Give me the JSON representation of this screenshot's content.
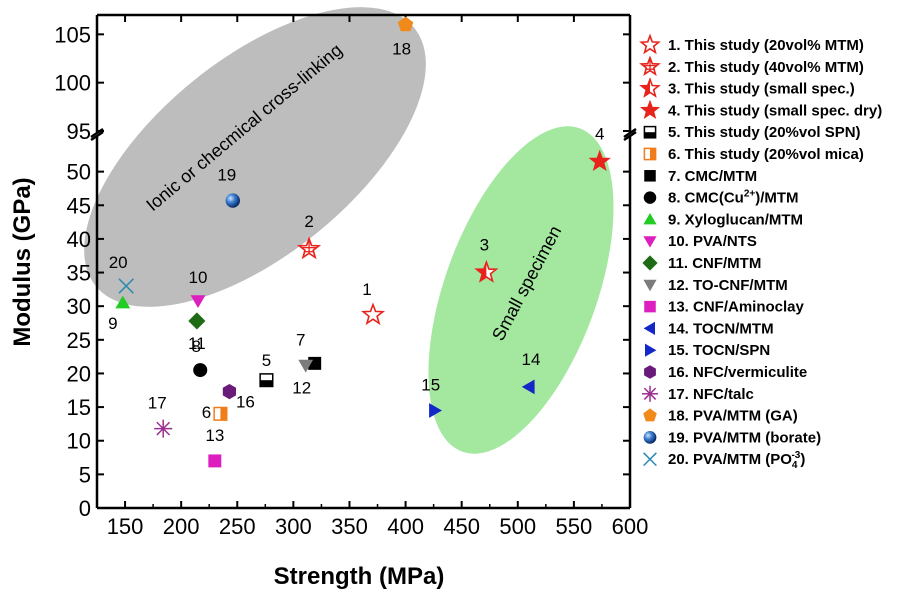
{
  "chart_data": {
    "type": "scatter",
    "xlabel": "Strength (MPa)",
    "ylabel": "Modulus (GPa)",
    "xlim": [
      125,
      600
    ],
    "ylim_lower": [
      0,
      55
    ],
    "ylim_upper": [
      95,
      107
    ],
    "x_ticks": [
      150,
      200,
      250,
      300,
      350,
      400,
      450,
      500,
      550,
      600
    ],
    "y_ticks_lower": [
      0,
      5,
      10,
      15,
      20,
      25,
      30,
      35,
      40,
      45,
      50
    ],
    "y_ticks_upper": [
      95,
      100,
      105
    ],
    "axis_break": "y between 55 and 95",
    "grid": false,
    "legend_position": "right",
    "regions": [
      {
        "label": "Ionic or checmical cross-linking",
        "color": "#bdbdbd"
      },
      {
        "label": "Small specimen",
        "color": "#a4e8a0"
      }
    ],
    "series": [
      {
        "id": "1",
        "name": "1. This study (20vol% MTM)",
        "x": 371,
        "y": 28.7,
        "marker": "star-open",
        "color": "#e8231c"
      },
      {
        "id": "2",
        "name": "2. This study (40vol% MTM)",
        "x": 314,
        "y": 38.5,
        "marker": "star-hatched",
        "color": "#e8231c"
      },
      {
        "id": "3",
        "name": "3. This study (small spec.)",
        "x": 472,
        "y": 35.0,
        "marker": "star-half",
        "color": "#e8231c"
      },
      {
        "id": "4",
        "name": "4. This study (small spec. dry)",
        "x": 573,
        "y": 51.5,
        "marker": "star-filled",
        "color": "#e8231c"
      },
      {
        "id": "5",
        "name": "5. This study (20%vol SPN)",
        "x": 276,
        "y": 19.0,
        "marker": "square-half-bottom",
        "color": "#000000"
      },
      {
        "id": "6",
        "name": "6. This study (20%vol mica)",
        "x": 235,
        "y": 14.0,
        "marker": "square-half-right",
        "color": "#f07d1a"
      },
      {
        "id": "7",
        "name": "7. CMC/MTM",
        "x": 319,
        "y": 21.5,
        "marker": "square",
        "color": "#000000"
      },
      {
        "id": "8",
        "name": "8. CMC(Cu2+)/MTM",
        "x": 217,
        "y": 20.5,
        "marker": "circle",
        "color": "#000000"
      },
      {
        "id": "9",
        "name": "9. Xyloglucan/MTM",
        "x": 148,
        "y": 30.5,
        "marker": "triangle-up",
        "color": "#22cc22"
      },
      {
        "id": "10",
        "name": "10. PVA/NTS",
        "x": 215,
        "y": 30.8,
        "marker": "triangle-down",
        "color": "#dd1fbf"
      },
      {
        "id": "11",
        "name": "11. CNF/MTM",
        "x": 214,
        "y": 27.8,
        "marker": "diamond",
        "color": "#1e6b16"
      },
      {
        "id": "12",
        "name": "12. TO-CNF/MTM",
        "x": 311,
        "y": 21.2,
        "marker": "triangle-down",
        "color": "#7c7c7c"
      },
      {
        "id": "13",
        "name": "13. CNF/Aminoclay",
        "x": 230,
        "y": 7.0,
        "marker": "square",
        "color": "#dd1fbf"
      },
      {
        "id": "14",
        "name": "14. TOCN/MTM",
        "x": 510,
        "y": 18.0,
        "marker": "triangle-left",
        "color": "#1428c8"
      },
      {
        "id": "15",
        "name": "15. TOCN/SPN",
        "x": 426,
        "y": 14.5,
        "marker": "triangle-right",
        "color": "#1428c8"
      },
      {
        "id": "16",
        "name": "16. NFC/vermiculite",
        "x": 243,
        "y": 17.3,
        "marker": "hexagon",
        "color": "#6a1a78"
      },
      {
        "id": "17",
        "name": "17. NFC/talc",
        "x": 184,
        "y": 11.8,
        "marker": "asterisk",
        "color": "#9b2f8f"
      },
      {
        "id": "18",
        "name": "18. PVA/MTM (GA)",
        "x": 400,
        "y": 106.0,
        "marker": "pentagon",
        "color": "#f08a1a"
      },
      {
        "id": "19",
        "name": "19. PVA/MTM (borate)",
        "x": 246,
        "y": 45.7,
        "marker": "sphere",
        "color": "#1a5aa8"
      },
      {
        "id": "20",
        "name": "20. PVA/MTM (PO4-3)",
        "x": 151,
        "y": 33.0,
        "marker": "x",
        "color": "#2a8ab0"
      }
    ]
  },
  "legend": {
    "entries": [
      "1. This study (20vol% MTM)",
      "2. This study (40vol% MTM)",
      "3. This study (small spec.)",
      "4. This study (small spec. dry)",
      "5. This study (20%vol SPN)",
      "6. This study (20%vol mica)",
      "7. CMC/MTM",
      "8. CMC(Cu",
      "9. Xyloglucan/MTM",
      "10. PVA/NTS",
      "11. CNF/MTM",
      "12. TO-CNF/MTM",
      "13. CNF/Aminoclay",
      "14. TOCN/MTM",
      "15. TOCN/SPN",
      "16. NFC/vermiculite",
      "17. NFC/talc",
      "18. PVA/MTM (GA)",
      "19. PVA/MTM (borate)",
      "20. PVA/MTM (PO"
    ],
    "entry8_sup": "2+",
    "entry8_tail": ")/MTM",
    "entry20_sub": "4",
    "entry20_sup": "-3",
    "entry20_tail": ")"
  }
}
